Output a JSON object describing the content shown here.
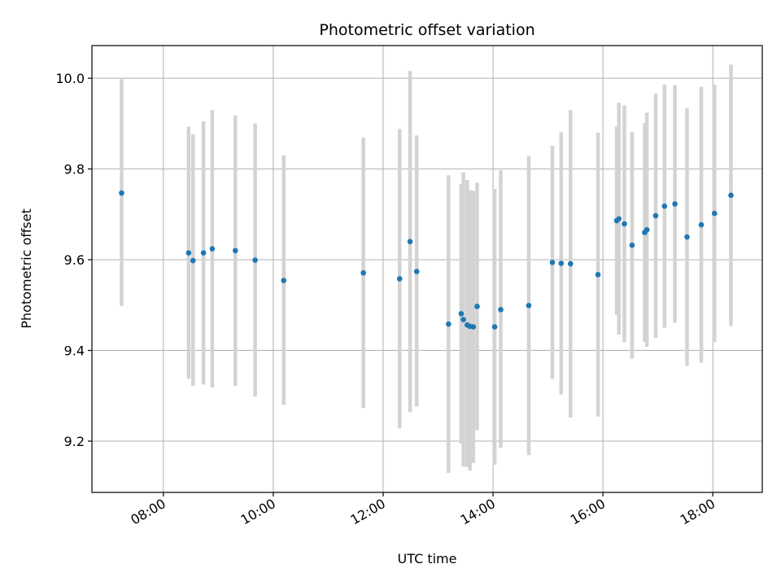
{
  "chart_data": {
    "type": "scatter",
    "title": "Photometric offset variation",
    "xlabel": "UTC time",
    "ylabel": "Photometric offset",
    "x_unit": "hours UTC",
    "xlim": [
      6.7,
      18.9
    ],
    "ylim": [
      9.087,
      10.072
    ],
    "x_ticks": [
      {
        "value": 8,
        "label": "08:00"
      },
      {
        "value": 10,
        "label": "10:00"
      },
      {
        "value": 12,
        "label": "12:00"
      },
      {
        "value": 14,
        "label": "14:00"
      },
      {
        "value": 16,
        "label": "16:00"
      },
      {
        "value": 18,
        "label": "18:00"
      }
    ],
    "y_ticks": [
      {
        "value": 9.2,
        "label": "9.2"
      },
      {
        "value": 9.4,
        "label": "9.4"
      },
      {
        "value": 9.6,
        "label": "9.6"
      },
      {
        "value": 9.8,
        "label": "9.8"
      },
      {
        "value": 10.0,
        "label": "10.0"
      }
    ],
    "grid": true,
    "colors": {
      "point": "#1f77b4",
      "errorbar": "#d3d3d3",
      "grid": "#b0b0b0"
    },
    "points": [
      {
        "x": 7.24,
        "y": 9.747,
        "low": 9.498,
        "high": 9.998
      },
      {
        "x": 8.46,
        "y": 9.615,
        "low": 9.337,
        "high": 9.893
      },
      {
        "x": 8.54,
        "y": 9.598,
        "low": 9.322,
        "high": 9.876
      },
      {
        "x": 8.73,
        "y": 9.615,
        "low": 9.325,
        "high": 9.905
      },
      {
        "x": 8.89,
        "y": 9.624,
        "low": 9.318,
        "high": 9.93
      },
      {
        "x": 9.31,
        "y": 9.62,
        "low": 9.322,
        "high": 9.918
      },
      {
        "x": 9.67,
        "y": 9.599,
        "low": 9.298,
        "high": 9.9
      },
      {
        "x": 10.19,
        "y": 9.554,
        "low": 9.28,
        "high": 9.83
      },
      {
        "x": 11.64,
        "y": 9.571,
        "low": 9.273,
        "high": 9.869
      },
      {
        "x": 12.3,
        "y": 9.558,
        "low": 9.228,
        "high": 9.888
      },
      {
        "x": 12.49,
        "y": 9.64,
        "low": 9.264,
        "high": 10.016
      },
      {
        "x": 12.61,
        "y": 9.574,
        "low": 9.276,
        "high": 9.874
      },
      {
        "x": 13.19,
        "y": 9.458,
        "low": 9.13,
        "high": 9.786
      },
      {
        "x": 13.42,
        "y": 9.481,
        "low": 9.195,
        "high": 9.767
      },
      {
        "x": 13.46,
        "y": 9.468,
        "low": 9.144,
        "high": 9.792
      },
      {
        "x": 13.53,
        "y": 9.456,
        "low": 9.143,
        "high": 9.776
      },
      {
        "x": 13.58,
        "y": 9.453,
        "low": 9.135,
        "high": 9.753
      },
      {
        "x": 13.64,
        "y": 9.452,
        "low": 9.152,
        "high": 9.752
      },
      {
        "x": 13.71,
        "y": 9.497,
        "low": 9.224,
        "high": 9.77
      },
      {
        "x": 14.03,
        "y": 9.452,
        "low": 9.148,
        "high": 9.756
      },
      {
        "x": 14.14,
        "y": 9.49,
        "low": 9.185,
        "high": 9.797
      },
      {
        "x": 14.65,
        "y": 9.499,
        "low": 9.169,
        "high": 9.829
      },
      {
        "x": 15.08,
        "y": 9.594,
        "low": 9.337,
        "high": 9.851
      },
      {
        "x": 15.24,
        "y": 9.592,
        "low": 9.303,
        "high": 9.881
      },
      {
        "x": 15.41,
        "y": 9.591,
        "low": 9.252,
        "high": 9.93
      },
      {
        "x": 15.91,
        "y": 9.567,
        "low": 9.254,
        "high": 9.88
      },
      {
        "x": 16.25,
        "y": 9.686,
        "low": 9.478,
        "high": 9.894
      },
      {
        "x": 16.29,
        "y": 9.69,
        "low": 9.435,
        "high": 9.946
      },
      {
        "x": 16.39,
        "y": 9.679,
        "low": 9.418,
        "high": 9.94
      },
      {
        "x": 16.53,
        "y": 9.632,
        "low": 9.382,
        "high": 9.882
      },
      {
        "x": 16.76,
        "y": 9.66,
        "low": 9.419,
        "high": 9.901
      },
      {
        "x": 16.8,
        "y": 9.666,
        "low": 9.408,
        "high": 9.924
      },
      {
        "x": 16.96,
        "y": 9.697,
        "low": 9.428,
        "high": 9.966
      },
      {
        "x": 17.12,
        "y": 9.718,
        "low": 9.45,
        "high": 9.986
      },
      {
        "x": 17.31,
        "y": 9.723,
        "low": 9.461,
        "high": 9.985
      },
      {
        "x": 17.53,
        "y": 9.65,
        "low": 9.366,
        "high": 9.934
      },
      {
        "x": 17.79,
        "y": 9.677,
        "low": 9.373,
        "high": 9.981
      },
      {
        "x": 18.03,
        "y": 9.702,
        "low": 9.418,
        "high": 9.986
      },
      {
        "x": 18.33,
        "y": 9.742,
        "low": 9.454,
        "high": 10.03
      }
    ]
  }
}
